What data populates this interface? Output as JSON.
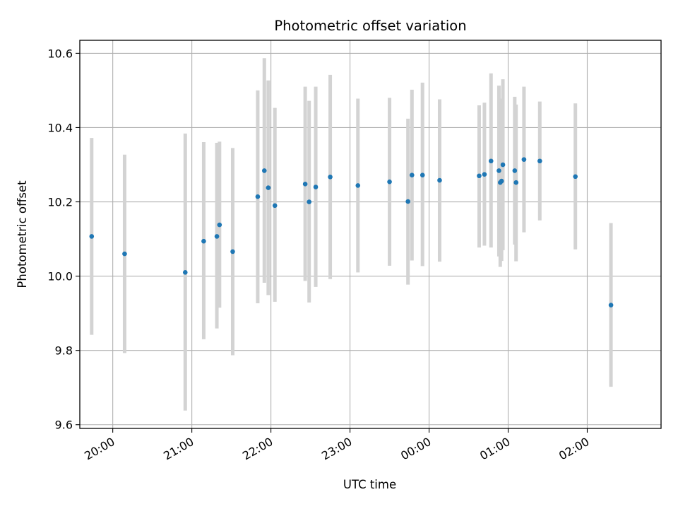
{
  "chart_data": {
    "type": "scatter",
    "title": "Photometric offset variation",
    "xlabel": "UTC time",
    "ylabel": "Photometric offset",
    "x_axis": "time",
    "xlim": [
      "19:35",
      "02:56"
    ],
    "ylim": [
      9.59,
      10.635
    ],
    "x_ticks": [
      "20:00",
      "21:00",
      "22:00",
      "23:00",
      "00:00",
      "01:00",
      "02:00"
    ],
    "y_ticks": [
      "9.6",
      "9.8",
      "10.0",
      "10.2",
      "10.4",
      "10.6"
    ],
    "y_tick_values": [
      9.6,
      9.8,
      10.0,
      10.2,
      10.4,
      10.6
    ],
    "grid": true,
    "legend": "none",
    "colors": {
      "point": "#1f77b4",
      "errorbar": "#d3d3d3",
      "grid": "#b0b0b0",
      "axes": "#000000"
    },
    "points": [
      {
        "x": "19:44",
        "y": 10.107,
        "err_low": 9.842,
        "err_high": 10.372
      },
      {
        "x": "20:09",
        "y": 10.06,
        "err_low": 9.793,
        "err_high": 10.327
      },
      {
        "x": "20:55",
        "y": 10.01,
        "err_low": 9.638,
        "err_high": 10.384
      },
      {
        "x": "21:09",
        "y": 10.094,
        "err_low": 9.83,
        "err_high": 10.361
      },
      {
        "x": "21:19",
        "y": 10.107,
        "err_low": 9.859,
        "err_high": 10.359
      },
      {
        "x": "21:21",
        "y": 10.138,
        "err_low": 9.915,
        "err_high": 10.362
      },
      {
        "x": "21:31",
        "y": 10.066,
        "err_low": 9.787,
        "err_high": 10.345
      },
      {
        "x": "21:50",
        "y": 10.214,
        "err_low": 9.927,
        "err_high": 10.5
      },
      {
        "x": "21:55",
        "y": 10.284,
        "err_low": 9.982,
        "err_high": 10.587
      },
      {
        "x": "21:58",
        "y": 10.238,
        "err_low": 9.949,
        "err_high": 10.527
      },
      {
        "x": "22:03",
        "y": 10.19,
        "err_low": 9.931,
        "err_high": 10.453
      },
      {
        "x": "22:26",
        "y": 10.248,
        "err_low": 9.987,
        "err_high": 10.51
      },
      {
        "x": "22:29",
        "y": 10.2,
        "err_low": 9.929,
        "err_high": 10.472
      },
      {
        "x": "22:34",
        "y": 10.24,
        "err_low": 9.971,
        "err_high": 10.51
      },
      {
        "x": "22:45",
        "y": 10.267,
        "err_low": 9.992,
        "err_high": 10.542
      },
      {
        "x": "23:06",
        "y": 10.244,
        "err_low": 10.01,
        "err_high": 10.478
      },
      {
        "x": "23:30",
        "y": 10.254,
        "err_low": 10.028,
        "err_high": 10.48
      },
      {
        "x": "23:44",
        "y": 10.201,
        "err_low": 9.977,
        "err_high": 10.424
      },
      {
        "x": "23:47",
        "y": 10.272,
        "err_low": 10.042,
        "err_high": 10.502
      },
      {
        "x": "23:55",
        "y": 10.272,
        "err_low": 10.027,
        "err_high": 10.521
      },
      {
        "x": "00:08",
        "y": 10.258,
        "err_low": 10.039,
        "err_high": 10.476
      },
      {
        "x": "00:38",
        "y": 10.27,
        "err_low": 10.077,
        "err_high": 10.46
      },
      {
        "x": "00:42",
        "y": 10.274,
        "err_low": 10.082,
        "err_high": 10.467
      },
      {
        "x": "00:47",
        "y": 10.31,
        "err_low": 10.077,
        "err_high": 10.546
      },
      {
        "x": "00:53",
        "y": 10.284,
        "err_low": 10.053,
        "err_high": 10.513
      },
      {
        "x": "00:54",
        "y": 10.252,
        "err_low": 10.025,
        "err_high": 10.478
      },
      {
        "x": "00:55",
        "y": 10.256,
        "err_low": 10.041,
        "err_high": 10.47
      },
      {
        "x": "00:56",
        "y": 10.3,
        "err_low": 10.07,
        "err_high": 10.53
      },
      {
        "x": "01:05",
        "y": 10.284,
        "err_low": 10.085,
        "err_high": 10.483
      },
      {
        "x": "01:06",
        "y": 10.252,
        "err_low": 10.04,
        "err_high": 10.462
      },
      {
        "x": "01:12",
        "y": 10.314,
        "err_low": 10.118,
        "err_high": 10.51
      },
      {
        "x": "01:24",
        "y": 10.31,
        "err_low": 10.15,
        "err_high": 10.47
      },
      {
        "x": "01:51",
        "y": 10.268,
        "err_low": 10.072,
        "err_high": 10.465
      },
      {
        "x": "02:18",
        "y": 9.922,
        "err_low": 9.702,
        "err_high": 10.143
      }
    ]
  }
}
